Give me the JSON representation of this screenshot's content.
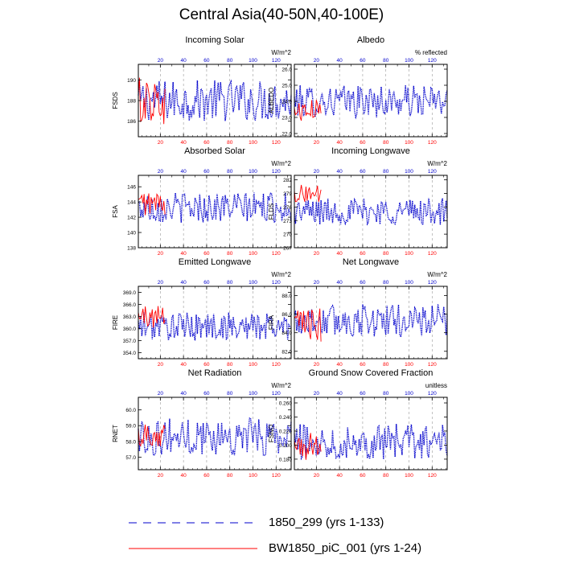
{
  "figure": {
    "title": "Central Asia(40-50N,40-100E)",
    "legend": [
      {
        "label": "1850_299 (yrs 1-133)",
        "style": "dashed",
        "color": "#0000cc"
      },
      {
        "label": "BW1850_piC_001 (yrs 1-24)",
        "style": "solid",
        "color": "#ff0000"
      }
    ]
  },
  "chart_data": [
    {
      "type": "line",
      "title": "Incoming Solar",
      "ylabel": "FSDS",
      "units": "W/m^2",
      "ylim": [
        184.5,
        191.5
      ],
      "yticks": [
        186,
        188,
        190
      ],
      "ytick_labels": [
        "186",
        "188",
        "190"
      ],
      "top_x_ticks": [
        20,
        40,
        60,
        80,
        100,
        120
      ],
      "bottom_x_ticks": [
        20,
        40,
        60,
        80,
        100,
        120
      ],
      "series": [
        {
          "name": "1850_299 (yrs 1-133)",
          "years": [
            1,
            133
          ],
          "mean": 188.0,
          "amp": 2.0
        },
        {
          "name": "BW1850_piC_001 (yrs 1-24)",
          "years": [
            1,
            24
          ],
          "mean": 188.0,
          "amp": 2.3
        }
      ]
    },
    {
      "type": "line",
      "title": "Albedo",
      "ylabel": "ALBEDO",
      "units": "% reflected",
      "ylim": [
        21.8,
        26.3
      ],
      "yticks": [
        22.0,
        23.0,
        24.0,
        25.0,
        26.0
      ],
      "ytick_labels": [
        "22.0",
        "23.0",
        "24.0",
        "25.0",
        "26.0"
      ],
      "top_x_ticks": [
        20,
        40,
        60,
        80,
        100,
        120
      ],
      "bottom_x_ticks": [
        20,
        40,
        60,
        80,
        100,
        120
      ],
      "series": [
        {
          "name": "1850_299 (yrs 1-133)",
          "years": [
            1,
            133
          ],
          "mean": 24.0,
          "amp": 1.0
        },
        {
          "name": "BW1850_piC_001 (yrs 1-24)",
          "years": [
            1,
            24
          ],
          "mean": 23.4,
          "amp": 0.7
        }
      ]
    },
    {
      "type": "line",
      "title": "Absorbed Solar",
      "ylabel": "FSA",
      "units": "W/m^2",
      "ylim": [
        138,
        147.5
      ],
      "yticks": [
        138,
        140,
        142,
        144,
        146
      ],
      "ytick_labels": [
        "138",
        "140",
        "142",
        "144",
        "146"
      ],
      "top_x_ticks": [
        20,
        40,
        60,
        80,
        100,
        120
      ],
      "bottom_x_ticks": [
        20,
        40,
        60,
        80,
        100,
        120
      ],
      "series": [
        {
          "name": "1850_299 (yrs 1-133)",
          "years": [
            1,
            133
          ],
          "mean": 143.3,
          "amp": 2.0
        },
        {
          "name": "BW1850_piC_001 (yrs 1-24)",
          "years": [
            1,
            24
          ],
          "mean": 143.8,
          "amp": 1.6
        }
      ]
    },
    {
      "type": "line",
      "title": "Incoming Longwave",
      "ylabel": "FLDS",
      "units": "W/m^2",
      "ylim": [
        267,
        283
      ],
      "yticks": [
        267,
        270,
        273,
        276,
        279,
        282
      ],
      "ytick_labels": [
        "267",
        "270",
        "273",
        "276",
        "279",
        "282"
      ],
      "top_x_ticks": [
        20,
        40,
        60,
        80,
        100,
        120
      ],
      "bottom_x_ticks": [
        20,
        40,
        60,
        80,
        100,
        120
      ],
      "series": [
        {
          "name": "1850_299 (yrs 1-133)",
          "years": [
            1,
            133
          ],
          "mean": 275.0,
          "amp": 3.0
        },
        {
          "name": "BW1850_piC_001 (yrs 1-24)",
          "years": [
            1,
            24
          ],
          "mean": 279.0,
          "amp": 2.0
        }
      ]
    },
    {
      "type": "line",
      "title": "Emitted Longwave",
      "ylabel": "FIRE",
      "units": "W/m^2",
      "ylim": [
        352.5,
        370.5
      ],
      "yticks": [
        354.0,
        357.0,
        360.0,
        363.0,
        366.0,
        369.0
      ],
      "ytick_labels": [
        "354.0",
        "357.0",
        "360.0",
        "363.0",
        "366.0",
        "369.0"
      ],
      "top_x_ticks": [
        20,
        40,
        60,
        80,
        100,
        120
      ],
      "bottom_x_ticks": [
        20,
        40,
        60,
        80,
        100,
        120
      ],
      "series": [
        {
          "name": "1850_299 (yrs 1-133)",
          "years": [
            1,
            133
          ],
          "mean": 360.5,
          "amp": 3.5
        },
        {
          "name": "BW1850_piC_001 (yrs 1-24)",
          "years": [
            1,
            24
          ],
          "mean": 363.0,
          "amp": 3.0
        }
      ]
    },
    {
      "type": "line",
      "title": "Net Longwave",
      "ylabel": "FIRA",
      "units": "W/m^2",
      "ylim": [
        81.2,
        89
      ],
      "yticks": [
        82.0,
        84.0,
        86.0,
        88.0
      ],
      "ytick_labels": [
        "82.0",
        "84.0",
        "86.0",
        "88.0"
      ],
      "top_x_ticks": [
        20,
        40,
        60,
        80,
        100,
        120
      ],
      "bottom_x_ticks": [
        20,
        40,
        60,
        80,
        100,
        120
      ],
      "series": [
        {
          "name": "1850_299 (yrs 1-133)",
          "years": [
            1,
            133
          ],
          "mean": 85.3,
          "amp": 1.8
        },
        {
          "name": "BW1850_piC_001 (yrs 1-24)",
          "years": [
            1,
            24
          ],
          "mean": 84.8,
          "amp": 1.8
        }
      ]
    },
    {
      "type": "line",
      "title": "Net Radiation",
      "ylabel": "RNET",
      "units": "W/m^2",
      "ylim": [
        56.2,
        60.8
      ],
      "yticks": [
        57.0,
        58.0,
        59.0,
        60.0
      ],
      "ytick_labels": [
        "57.0",
        "58.0",
        "59.0",
        "60.0"
      ],
      "top_x_ticks": [
        20,
        40,
        60,
        80,
        100,
        120
      ],
      "bottom_x_ticks": [
        20,
        40,
        60,
        80,
        100,
        120
      ],
      "series": [
        {
          "name": "1850_299 (yrs 1-133)",
          "years": [
            1,
            133
          ],
          "mean": 58.3,
          "amp": 1.2
        },
        {
          "name": "BW1850_piC_001 (yrs 1-24)",
          "years": [
            1,
            24
          ],
          "mean": 58.5,
          "amp": 0.9
        }
      ]
    },
    {
      "type": "line",
      "title": "Ground Snow Covered Fraction",
      "ylabel": "FSNO",
      "units": "unitless",
      "ylim": [
        0.165,
        0.268
      ],
      "yticks": [
        0.18,
        0.2,
        0.22,
        0.24,
        0.26
      ],
      "ytick_labels": [
        "0.180",
        "0.200",
        "0.220",
        "0.240",
        "0.260"
      ],
      "top_x_ticks": [
        20,
        40,
        60,
        80,
        100,
        120
      ],
      "bottom_x_ticks": [
        20,
        40,
        60,
        80,
        100,
        120
      ],
      "series": [
        {
          "name": "1850_299 (yrs 1-133)",
          "years": [
            1,
            133
          ],
          "mean": 0.205,
          "amp": 0.025
        },
        {
          "name": "BW1850_piC_001 (yrs 1-24)",
          "years": [
            1,
            24
          ],
          "mean": 0.198,
          "amp": 0.02
        }
      ]
    }
  ]
}
